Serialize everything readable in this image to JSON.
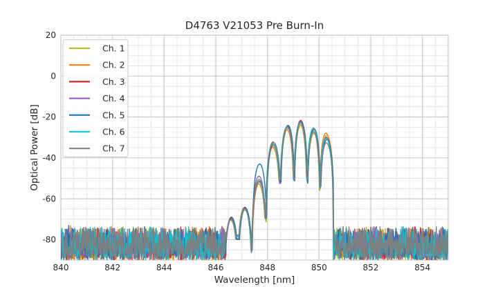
{
  "chart_data": {
    "type": "line",
    "title": "D4763 V21053 Pre Burn-In",
    "xlabel": "Wavelength [nm]",
    "ylabel": "Optical Power [dB]",
    "xlim": [
      840,
      855
    ],
    "ylim": [
      -90,
      20
    ],
    "x_major_ticks": [
      840,
      842,
      844,
      846,
      848,
      850,
      852,
      854
    ],
    "y_major_ticks": [
      20,
      0,
      -20,
      -40,
      -60,
      -80
    ],
    "x_minor_step_nm": 0.5,
    "y_minor_step_db": 5,
    "grid": "major+minor",
    "legend": {
      "position": "upper-left",
      "entries": [
        "Ch. 1",
        "Ch. 2",
        "Ch. 3",
        "Ch. 4",
        "Ch. 5",
        "Ch. 6",
        "Ch. 7"
      ]
    },
    "series": [
      {
        "name": "Ch. 1",
        "color": "#bcbd22",
        "peak_offsets_db": [
          0.5,
          -0.5,
          0,
          -0.5,
          -1,
          -1.5,
          -1.8,
          1.6
        ],
        "wavelength_shift_nm": 0.012
      },
      {
        "name": "Ch. 2",
        "color": "#ff7f0e",
        "peak_offsets_db": [
          -0.5,
          0.6,
          -0.8,
          -1,
          -1.6,
          -1,
          -0.6,
          2.6
        ],
        "wavelength_shift_nm": -0.018
      },
      {
        "name": "Ch. 3",
        "color": "#d62728",
        "peak_offsets_db": [
          1,
          0.8,
          0.6,
          0.2,
          0.4,
          0.9,
          0.2,
          0.4
        ],
        "wavelength_shift_nm": 0.006
      },
      {
        "name": "Ch. 4",
        "color": "#9467bd",
        "peak_offsets_db": [
          0.2,
          -0.2,
          3,
          0.4,
          -0.4,
          0.1,
          0.9,
          0.7
        ],
        "wavelength_shift_nm": -0.006
      },
      {
        "name": "Ch. 5",
        "color": "#1f77b4",
        "peak_offsets_db": [
          0.7,
          0.4,
          9,
          1.3,
          0.7,
          0.4,
          0.4,
          -0.6
        ],
        "wavelength_shift_nm": 0.02
      },
      {
        "name": "Ch. 6",
        "color": "#17becf",
        "peak_offsets_db": [
          -0.2,
          0.2,
          0.4,
          0.7,
          0.2,
          0,
          0.7,
          -0.1
        ],
        "wavelength_shift_nm": -0.012
      },
      {
        "name": "Ch. 7",
        "color": "#7f7f7f",
        "peak_offsets_db": [
          0,
          0,
          1.4,
          1.6,
          0,
          -0.2,
          -1.2,
          -2.2
        ],
        "wavelength_shift_nm": 0
      }
    ],
    "spectral_modes": {
      "centers_nm": [
        846.6,
        847.12,
        847.68,
        848.22,
        848.78,
        849.28,
        849.79,
        850.28
      ],
      "base_peaks_db": [
        -70,
        -65,
        -52,
        -33.8,
        -24.8,
        -22.6,
        -26.3,
        -30.5
      ],
      "notch_levels_db": [
        -79,
        -85,
        -70,
        -51.5,
        -50.5,
        -51,
        -55
      ],
      "lobe_null_halfwidth_nm": 0.29
    },
    "noise_floor": {
      "regions_nm": [
        [
          840,
          846.4
        ],
        [
          850.56,
          855
        ]
      ],
      "top_db": -71.5,
      "typical_db": -80,
      "bottom_db": -90
    }
  },
  "colors": {
    "text": "#262626",
    "grid_major": "#cccccc",
    "grid_minor": "#e4e4e4",
    "spine": "#cccccc",
    "legend_border": "#cccccc",
    "background": "#ffffff"
  }
}
